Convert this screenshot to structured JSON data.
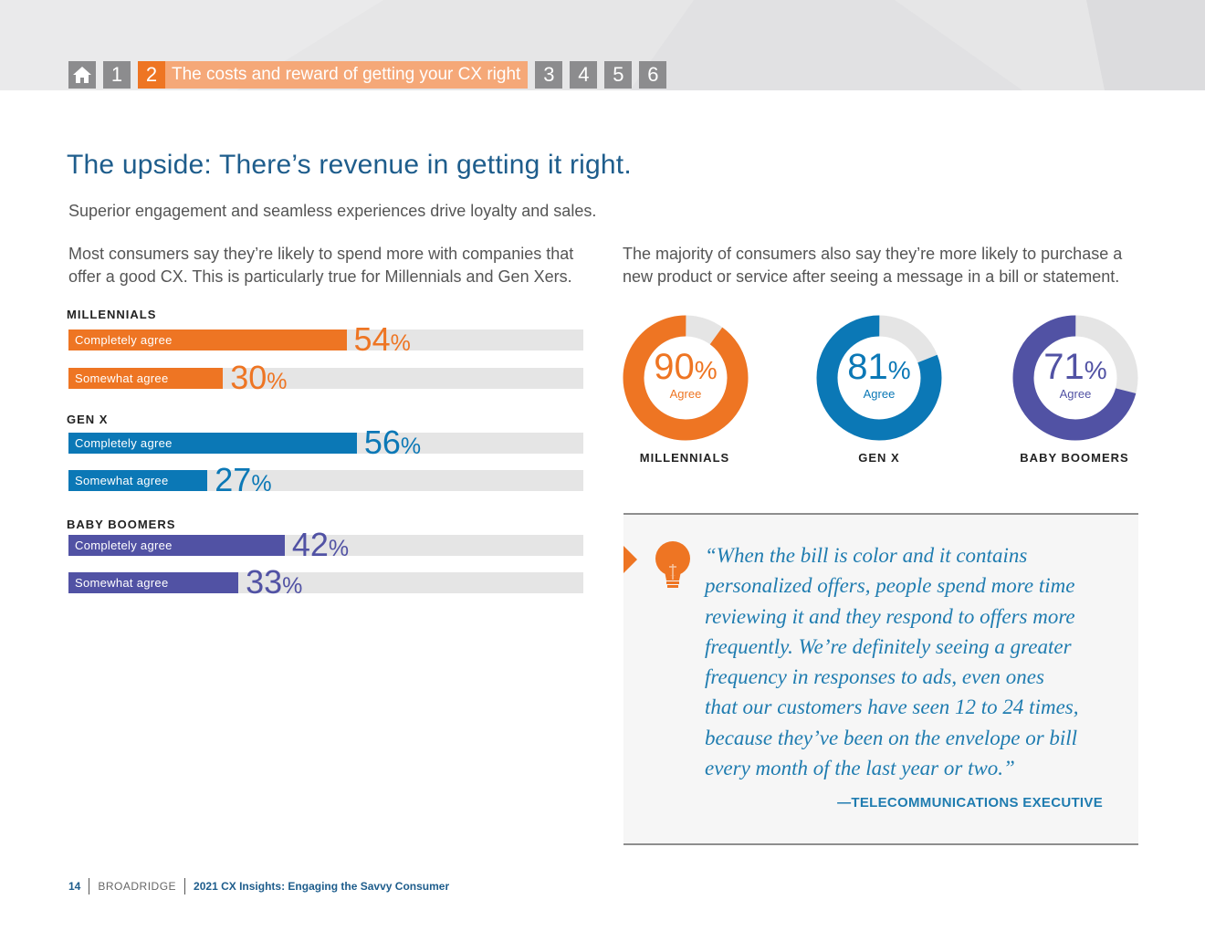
{
  "nav": {
    "items": [
      "1",
      "2",
      "3",
      "4",
      "5",
      "6"
    ],
    "active_number": "2",
    "active_title": "The costs and reward of getting your CX right"
  },
  "title": "The upside: There’s revenue in getting it right.",
  "subtitle": "Superior engagement and seamless experiences drive loyalty and sales.",
  "left_paragraph": "Most consumers say they’re likely to spend more with companies that offer a good CX. This is particularly true for Millennials and Gen Xers.",
  "right_paragraph": "The majority of consumers also say they’re more likely to purchase a new product or service after seeing a message in a bill or statement.",
  "colors": {
    "orange": "#ee7523",
    "blue": "#0b78b6",
    "purple": "#5152a4",
    "track": "#e5e5e5"
  },
  "bar_groups": [
    {
      "label": "MILLENNIALS",
      "rows": [
        {
          "label": "Completely agree",
          "value": 54
        },
        {
          "label": "Somewhat agree",
          "value": 30
        }
      ]
    },
    {
      "label": "GEN X",
      "rows": [
        {
          "label": "Completely agree",
          "value": 56
        },
        {
          "label": "Somewhat agree",
          "value": 27
        }
      ]
    },
    {
      "label": "BABY BOOMERS",
      "rows": [
        {
          "label": "Completely agree",
          "value": 42
        },
        {
          "label": "Somewhat agree",
          "value": 33
        }
      ]
    }
  ],
  "donuts": [
    {
      "label": "MILLENNIALS",
      "value": 90,
      "sub": "Agree"
    },
    {
      "label": "GEN X",
      "value": 81,
      "sub": "Agree"
    },
    {
      "label": "BABY BOOMERS",
      "value": 71,
      "sub": "Agree"
    }
  ],
  "percent_sign": "%",
  "quote": {
    "text": "“When the bill is color and it contains\npersonalized offers, people spend more time\nreviewing it and they respond to offers more\nfrequently. We’re definitely seeing a greater\nfrequency in responses to ads, even ones\nthat our customers have seen 12 to 24 times,\nbecause they’ve been on the envelope or bill\nevery month of the last year or two.”",
    "attribution": "—TELECOMMUNICATIONS EXECUTIVE",
    "icon": "lightbulb-icon"
  },
  "footer": {
    "page": "14",
    "brand": "BROADRIDGE",
    "doc_title": "2021 CX Insights: Engaging the Savvy Consumer"
  },
  "chart_data": [
    {
      "type": "bar",
      "categories": [
        "MILLENNIALS",
        "GEN X",
        "BABY BOOMERS"
      ],
      "series": [
        {
          "name": "Completely agree",
          "values": [
            54,
            56,
            42
          ]
        },
        {
          "name": "Somewhat agree",
          "values": [
            30,
            27,
            33
          ]
        }
      ],
      "ylim": [
        0,
        100
      ]
    },
    {
      "type": "pie",
      "categories": [
        "MILLENNIALS",
        "GEN X",
        "BABY BOOMERS"
      ],
      "values": [
        90,
        81,
        71
      ]
    }
  ]
}
